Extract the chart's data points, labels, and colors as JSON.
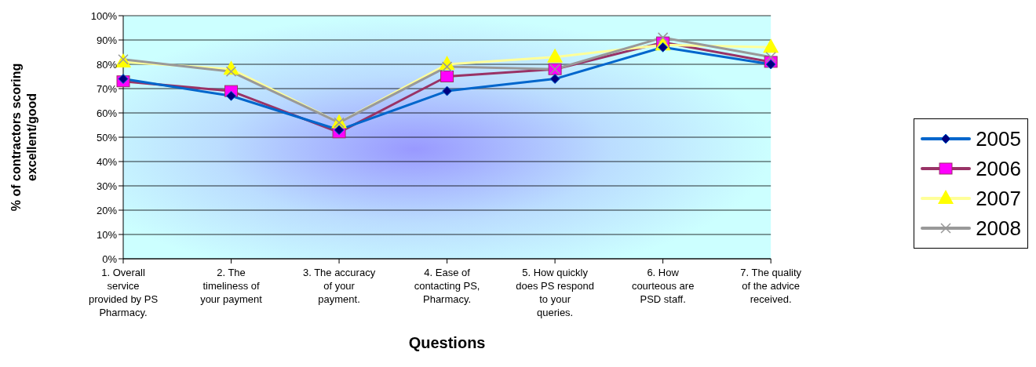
{
  "chart_data": {
    "type": "line",
    "xlabel": "Questions",
    "ylabel": "% of contractors scoring excellent/good",
    "categories": [
      "1. Overall service provided by PS Pharmacy.",
      "2. The timeliness of your payment",
      "3. The accuracy of your payment.",
      "4. Ease of contacting PS, Pharmacy.",
      "5. How  quickly does PS respond to your queries.",
      "6. How courteous are PSD staff.",
      "7. The quality of the advice received."
    ],
    "series": [
      {
        "name": "2005",
        "color": "#0066cc",
        "marker": "diamond",
        "values": [
          74,
          67,
          53,
          69,
          74,
          87,
          80
        ]
      },
      {
        "name": "2006",
        "color": "#993366",
        "marker": "square",
        "values": [
          73,
          69,
          52,
          75,
          78,
          89,
          81
        ]
      },
      {
        "name": "2007",
        "color": "#ffff99",
        "marker": "triangle",
        "values": [
          81,
          78,
          56,
          80,
          83,
          88,
          87
        ]
      },
      {
        "name": "2008",
        "color": "#999999",
        "marker": "cross",
        "values": [
          82,
          77,
          56,
          79,
          78,
          91,
          83
        ]
      }
    ],
    "ylim": [
      0,
      100
    ],
    "yticks": [
      {
        "value": 0,
        "label": "0%"
      },
      {
        "value": 10,
        "label": "10%"
      },
      {
        "value": 20,
        "label": "20%"
      },
      {
        "value": 30,
        "label": "30%"
      },
      {
        "value": 40,
        "label": "40%"
      },
      {
        "value": 50,
        "label": "50%"
      },
      {
        "value": 60,
        "label": "60%"
      },
      {
        "value": 70,
        "label": "70%"
      },
      {
        "value": 80,
        "label": "80%"
      },
      {
        "value": 90,
        "label": "90%"
      },
      {
        "value": 100,
        "label": "100%"
      }
    ],
    "grid": "y",
    "legend": "right"
  }
}
